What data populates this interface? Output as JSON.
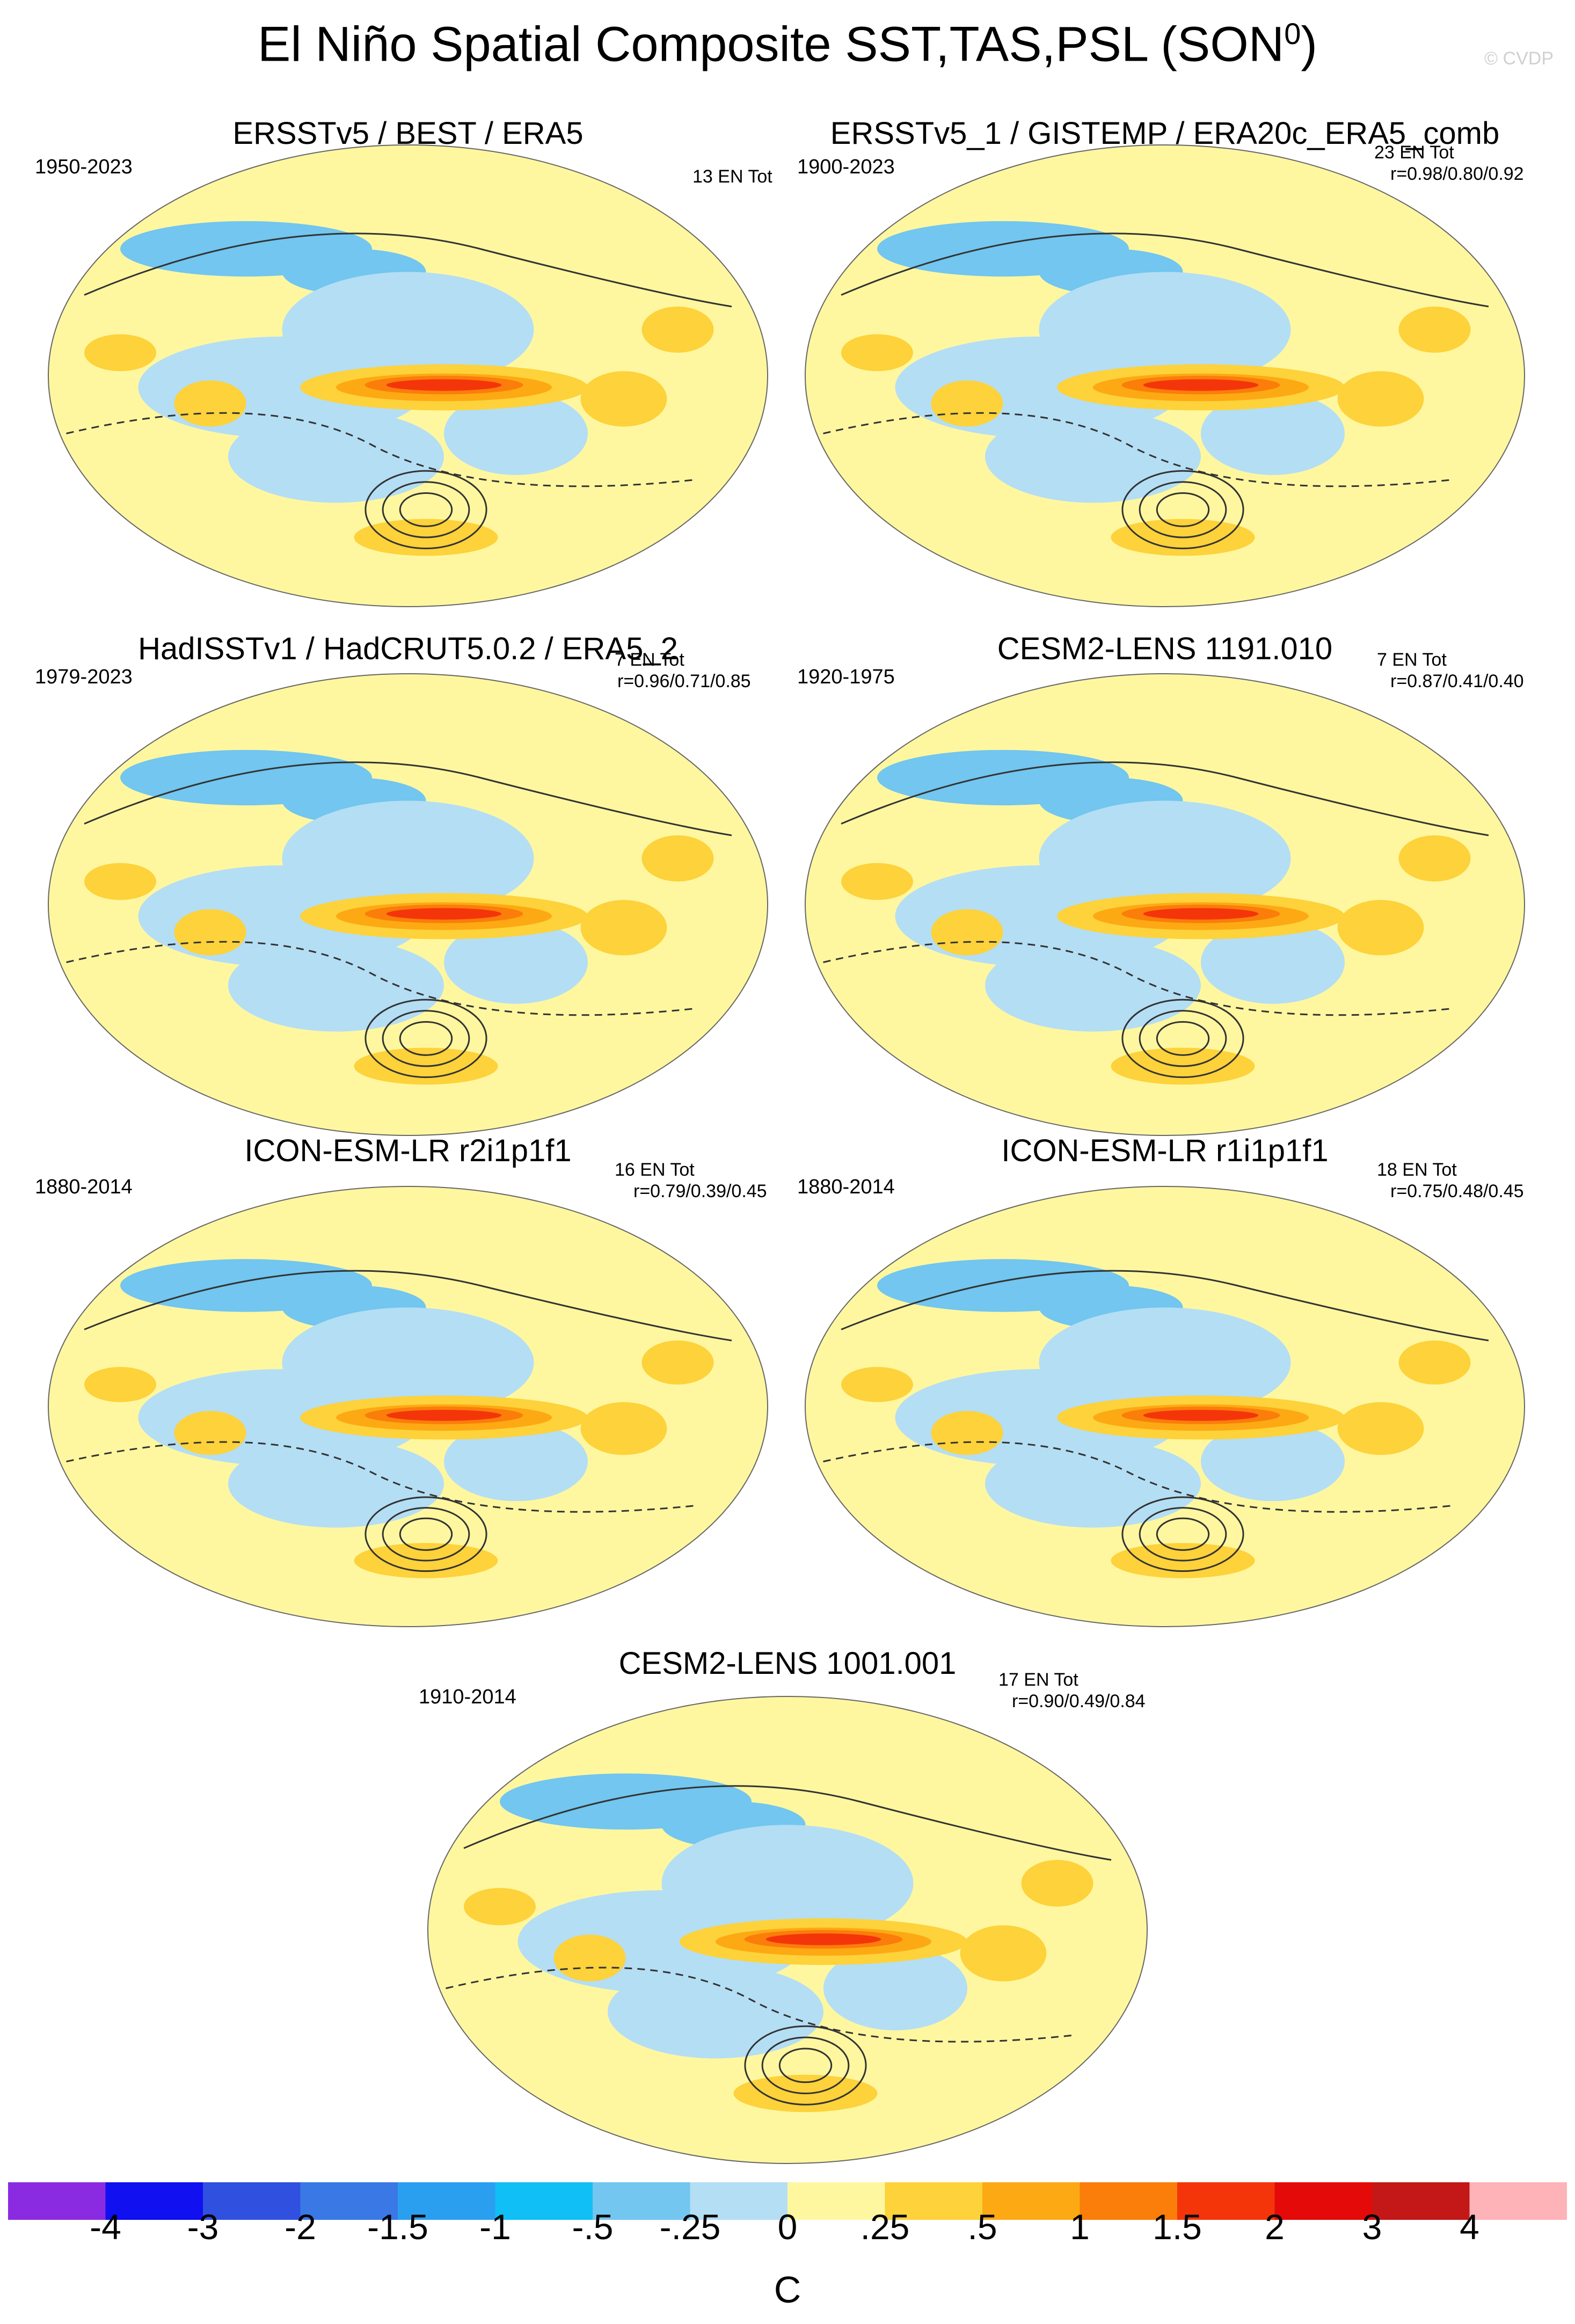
{
  "header": {
    "title": "El Niño Spatial Composite SST,TAS,PSL (SON",
    "title_sup": "0",
    "title_close": ")",
    "watermark": "© CVDP"
  },
  "panels": [
    {
      "title": "ERSSTv5 / BEST / ERA5",
      "period": "1950-2023",
      "count": "13 EN Tot",
      "corr": ""
    },
    {
      "title": "ERSSTv5_1 / GISTEMP / ERA20c_ERA5_comb",
      "period": "1900-2023",
      "count": "23 EN Tot",
      "corr": "r=0.98/0.80/0.92"
    },
    {
      "title": "HadISSTv1 / HadCRUT5.0.2 / ERA5_2",
      "period": "1979-2023",
      "count": "7 EN Tot",
      "corr": "r=0.96/0.71/0.85"
    },
    {
      "title": "CESM2-LENS 1191.010",
      "period": "1920-1975",
      "count": "7 EN Tot",
      "corr": "r=0.87/0.41/0.40"
    },
    {
      "title": "ICON-ESM-LR r2i1p1f1",
      "period": "1880-2014",
      "count": "16 EN Tot",
      "corr": "r=0.79/0.39/0.45"
    },
    {
      "title": "ICON-ESM-LR r1i1p1f1",
      "period": "1880-2014",
      "count": "18 EN Tot",
      "corr": "r=0.75/0.48/0.45"
    },
    {
      "title": "CESM2-LENS 1001.001",
      "period": "1910-2014",
      "count": "17 EN Tot",
      "corr": "r=0.90/0.49/0.84"
    }
  ],
  "chart_data": {
    "type": "heatmap",
    "title": "El Niño Spatial Composite SST,TAS,PSL (SON0)",
    "projection": "robinson-style global map",
    "variables": [
      "SST",
      "TAS",
      "PSL"
    ],
    "season": "SON",
    "colorbar": {
      "unit": "C",
      "tick_labels": [
        "-4",
        "-3",
        "-2",
        "-1.5",
        "-1",
        "-.5",
        "-.25",
        "0",
        ".25",
        ".5",
        "1",
        "1.5",
        "2",
        "3",
        "4"
      ],
      "levels": [
        -4,
        -3,
        -2,
        -1.5,
        -1,
        -0.5,
        -0.25,
        0,
        0.25,
        0.5,
        1,
        1.5,
        2,
        3,
        4
      ],
      "colors": [
        "#8a2be2",
        "#1010f0",
        "#3050e0",
        "#3a78e6",
        "#2a9ff0",
        "#10bff5",
        "#72c6ef",
        "#b4def4",
        "#fff7a0",
        "#fdd23a",
        "#fda914",
        "#fb7d0a",
        "#f4350a",
        "#e50a0a",
        "#c41818",
        "#fdb3b8"
      ]
    }
  }
}
